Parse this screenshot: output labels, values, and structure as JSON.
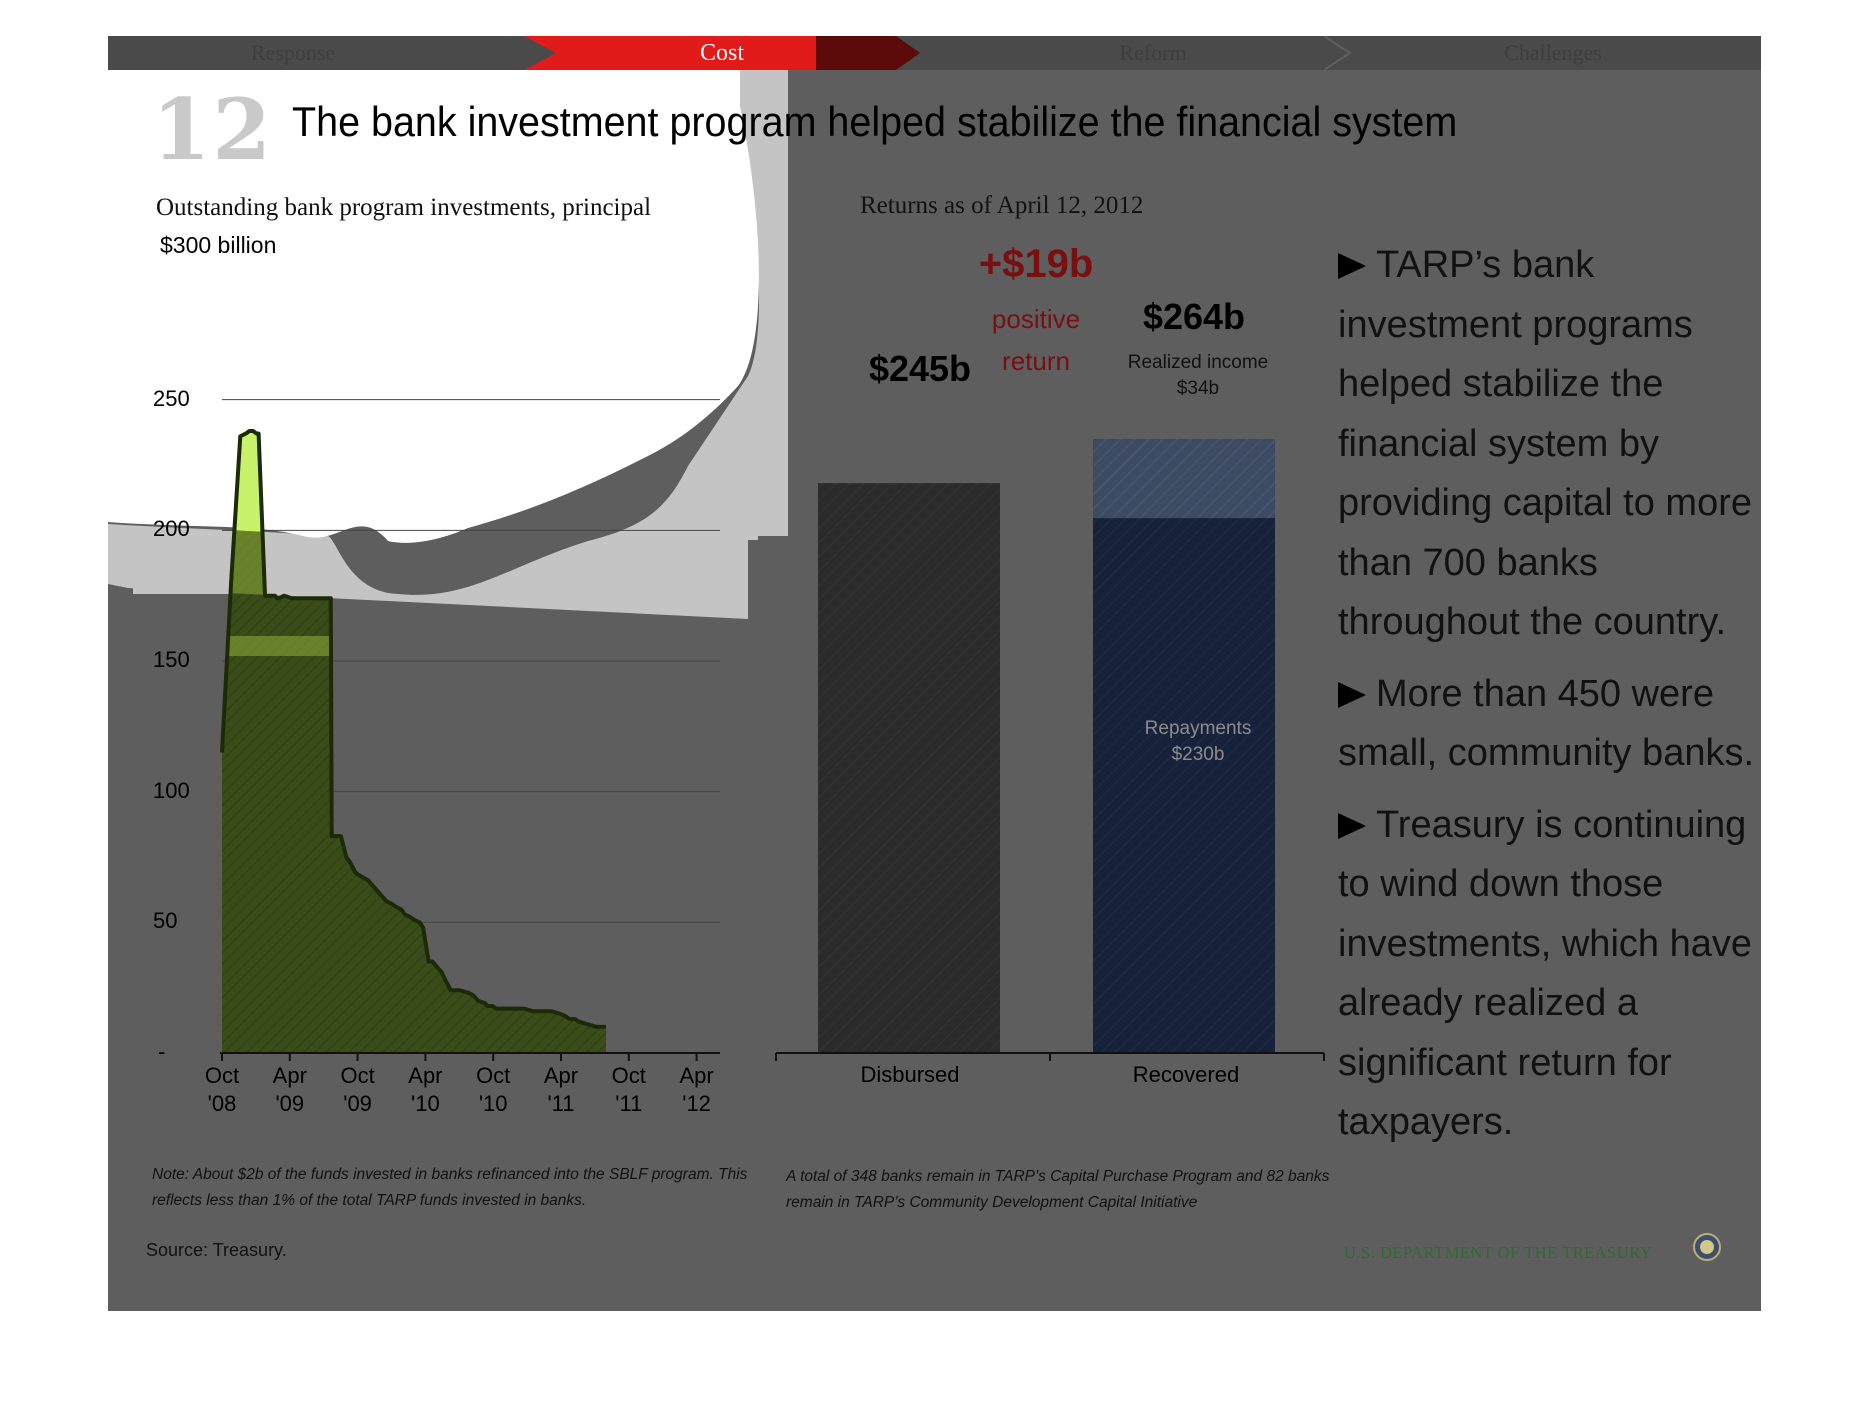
{
  "nav": {
    "tabs": [
      "Response",
      "Cost",
      "Reform",
      "Challenges"
    ],
    "active": "Cost",
    "active_color": "#e11a1a"
  },
  "slide_number": "12",
  "title": "The bank investment program helped stabilize the financial system",
  "left_chart_subtitle": "Outstanding bank program investments, principal",
  "right_chart_subtitle": "Returns as of April 12, 2012",
  "bullets": [
    "TARP’s bank investment programs helped stabilize the financial system by providing capital to more than 700 banks throughout the country.",
    "More than 450 were small, community banks.",
    "Treasury is continuing to wind down those investments, which have already realized a significant return for taxpayers."
  ],
  "notes": {
    "left": "Note: About $2b of the funds invested in banks refinanced into the SBLF program. This reflects less than 1% of the total TARP funds invested in banks.",
    "right": "A total of 348 banks remain in TARP’s Capital Purchase Program and 82 banks remain in TARP’s Community Development Capital Initiative"
  },
  "source": "Source: Treasury.",
  "footer_brand": "U.S. DEPARTMENT OF THE TREASURY",
  "chart_data": [
    {
      "type": "area",
      "title": "Outstanding bank program investments, principal",
      "unit_label": "$300 billion",
      "y_ticks": [
        "250",
        "200",
        "150",
        "100",
        "50",
        "-"
      ],
      "y_tick_values": [
        250,
        200,
        150,
        100,
        50,
        0
      ],
      "x_ticks": [
        "Oct '08",
        "Apr '09",
        "Oct '09",
        "Apr '10",
        "Oct '10",
        "Apr '11",
        "Oct '11",
        "Apr '12"
      ],
      "ylim": [
        0,
        300
      ],
      "grid": true,
      "fill_color": "#c8f26a",
      "series": [
        {
          "x": [
            0,
            1,
            2,
            2.6,
            3,
            3.4,
            3.8,
            4,
            4.7,
            5,
            5.8,
            6,
            6.2,
            6.8,
            7.6,
            8,
            8.6,
            9,
            9.6,
            10,
            10.6,
            11,
            11.5,
            11.9,
            12,
            12.6,
            13,
            13.6,
            14,
            14.6,
            15,
            16,
            17,
            18,
            18.6,
            19,
            19.6,
            20,
            20.6,
            21,
            21.6,
            22,
            22.6,
            23,
            24,
            25,
            26,
            27,
            27.5,
            28,
            28.8,
            29,
            29.6,
            30,
            30.4,
            31,
            32,
            33,
            34,
            35,
            36,
            37,
            37.6,
            38,
            38.6,
            39,
            40,
            41,
            42
          ],
          "y": [
            115,
            180,
            236,
            237,
            238,
            238,
            237,
            237,
            175,
            175,
            175,
            174,
            174,
            175,
            174,
            174,
            174,
            174,
            174,
            174,
            174,
            174,
            174,
            174,
            83,
            83,
            83,
            75,
            73,
            69,
            68,
            66,
            62,
            58,
            57,
            56,
            55,
            53,
            52,
            51,
            50,
            48,
            35,
            35,
            31,
            24,
            24,
            23,
            22,
            20,
            19,
            18,
            18,
            17,
            17,
            17,
            17,
            17,
            16,
            16,
            16,
            15,
            14,
            13,
            13,
            12,
            11,
            10,
            10
          ]
        }
      ]
    },
    {
      "type": "bar",
      "title": "Returns as of April 12, 2012",
      "categories": [
        "Disbursed",
        "Recovered"
      ],
      "series": [
        {
          "name": "Repayments",
          "values": [
            245,
            230
          ],
          "label": "Repayments $230b"
        },
        {
          "name": "Realized income",
          "values": [
            0,
            34
          ],
          "label": "Realized income $34b"
        }
      ],
      "totals": [
        "$245b",
        "$264b"
      ],
      "difference_label": "+$19b",
      "difference_caption": "positive return",
      "colors": {
        "disbursed": "#2c2c2c",
        "repayments": "#16213a",
        "realized_income": "#3c4a62"
      },
      "ylim": [
        0,
        300
      ]
    }
  ]
}
